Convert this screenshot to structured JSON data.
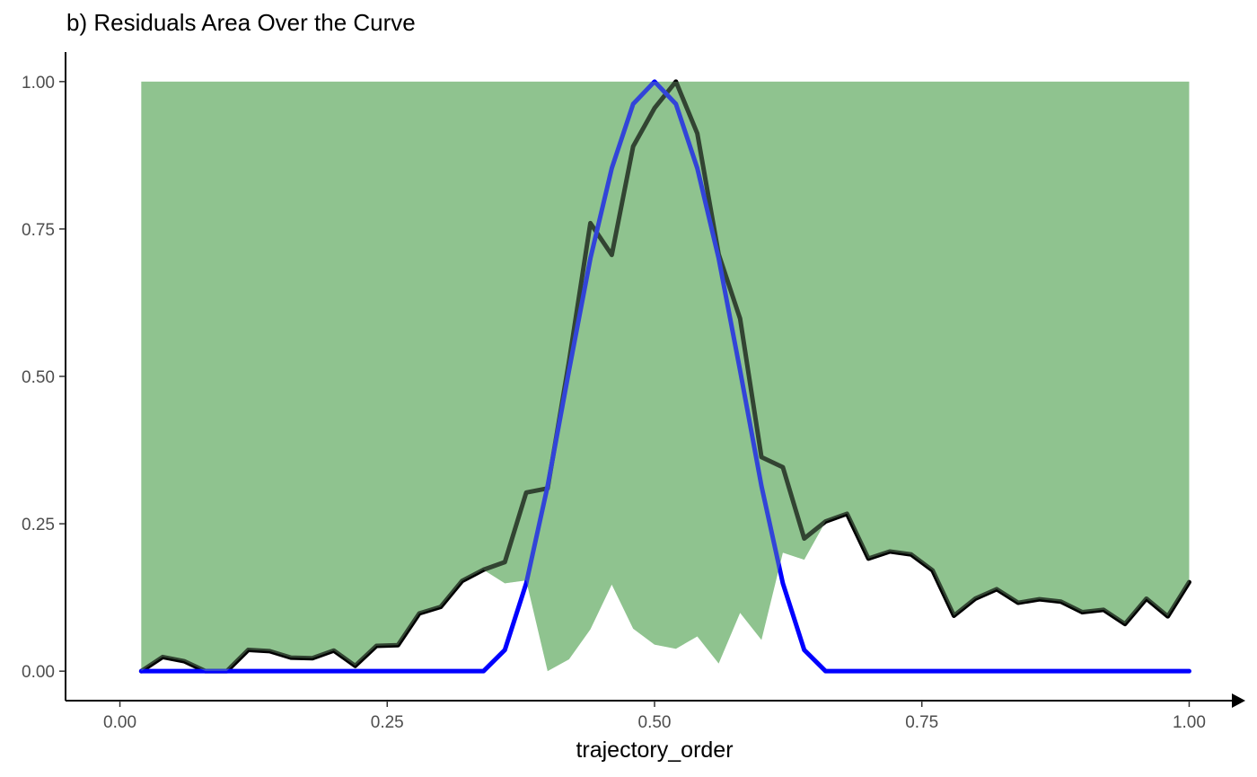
{
  "chart_data": {
    "type": "area",
    "title": "b) Residuals Area Over the Curve",
    "xlabel": "trajectory_order",
    "ylabel": "",
    "xlim": [
      -0.05,
      1.05
    ],
    "ylim": [
      -0.05,
      1.05
    ],
    "x_ticks": [
      "0.00",
      "0.25",
      "0.50",
      "0.75",
      "1.00"
    ],
    "y_ticks": [
      "0.00",
      "0.25",
      "0.50",
      "0.75",
      "1.00"
    ],
    "grid": false,
    "legend": "none",
    "x": [
      0.02,
      0.04,
      0.06,
      0.08,
      0.1,
      0.12,
      0.14,
      0.16,
      0.18,
      0.2,
      0.22,
      0.24,
      0.26,
      0.28,
      0.3,
      0.32,
      0.34,
      0.36,
      0.38,
      0.4,
      0.42,
      0.44,
      0.46,
      0.48,
      0.5,
      0.52,
      0.54,
      0.56,
      0.58,
      0.6,
      0.62,
      0.64,
      0.66,
      0.68,
      0.7,
      0.72,
      0.74,
      0.76,
      0.78,
      0.8,
      0.82,
      0.84,
      0.86,
      0.88,
      0.9,
      0.92,
      0.94,
      0.96,
      0.98,
      1.0
    ],
    "series": [
      {
        "role": "observed",
        "color": "#000000",
        "values": [
          0.0,
          0.024,
          0.017,
          0.0,
          0.0,
          0.036,
          0.034,
          0.023,
          0.022,
          0.035,
          0.009,
          0.043,
          0.044,
          0.098,
          0.109,
          0.153,
          0.172,
          0.185,
          0.303,
          0.31,
          0.525,
          0.76,
          0.706,
          0.89,
          0.955,
          1.0,
          0.912,
          0.707,
          0.598,
          0.363,
          0.346,
          0.225,
          0.254,
          0.267,
          0.191,
          0.203,
          0.198,
          0.171,
          0.094,
          0.123,
          0.139,
          0.116,
          0.122,
          0.118,
          0.1,
          0.104,
          0.08,
          0.123,
          0.093,
          0.151
        ]
      },
      {
        "role": "fitted",
        "color": "#0000ff",
        "values": [
          0,
          0,
          0,
          0,
          0,
          0,
          0,
          0,
          0,
          0,
          0,
          0,
          0,
          0,
          0,
          0,
          0,
          0.036,
          0.149,
          0.314,
          0.51,
          0.7,
          0.853,
          0.962,
          1.0,
          0.962,
          0.853,
          0.7,
          0.51,
          0.314,
          0.149,
          0.036,
          0,
          0,
          0,
          0,
          0,
          0,
          0,
          0,
          0,
          0,
          0,
          0,
          0,
          0,
          0,
          0,
          0,
          0
        ]
      },
      {
        "role": "residual-area",
        "color": "#8fc48f",
        "values": [
          0.0,
          0.024,
          0.017,
          0.0,
          0.0,
          0.036,
          0.034,
          0.023,
          0.022,
          0.035,
          0.009,
          0.043,
          0.044,
          0.098,
          0.109,
          0.153,
          0.172,
          0.149,
          0.154,
          0.0,
          0.02,
          0.071,
          0.147,
          0.072,
          0.045,
          0.038,
          0.059,
          0.013,
          0.099,
          0.053,
          0.201,
          0.189,
          0.254,
          0.267,
          0.191,
          0.203,
          0.198,
          0.171,
          0.094,
          0.123,
          0.139,
          0.116,
          0.122,
          0.118,
          0.1,
          0.104,
          0.08,
          0.123,
          0.093,
          0.151
        ]
      }
    ]
  }
}
